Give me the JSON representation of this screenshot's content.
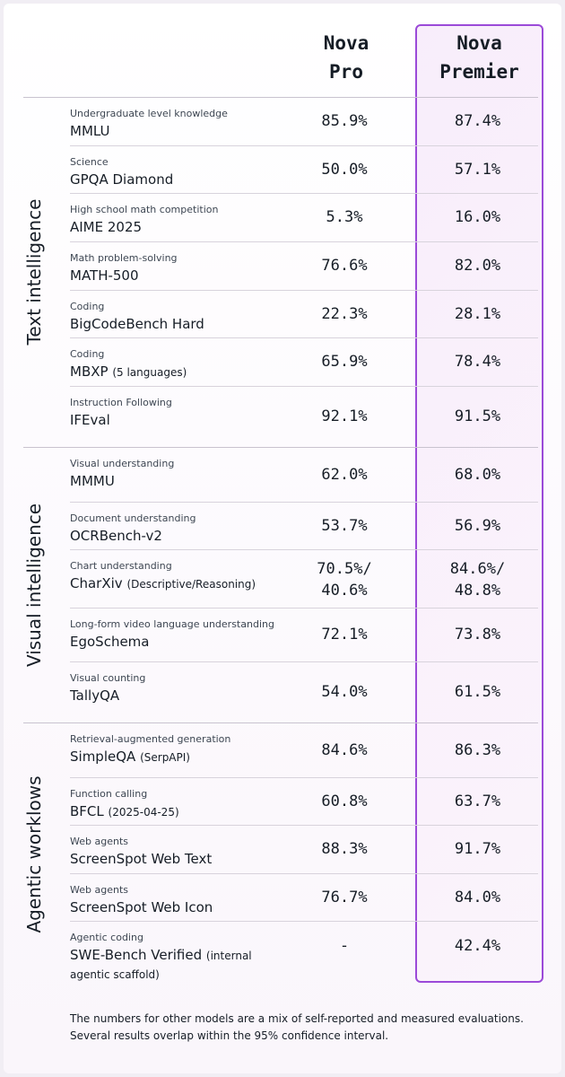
{
  "columns": {
    "pro": [
      "Nova",
      "Pro"
    ],
    "premier": [
      "Nova",
      "Premier"
    ]
  },
  "groups": [
    {
      "label": "Text intelligence",
      "rows": [
        {
          "category": "Undergraduate level knowledge",
          "benchmark": "MMLU",
          "note": "",
          "pro": [
            "85.9%"
          ],
          "premier": [
            "87.4%"
          ]
        },
        {
          "category": "Science",
          "benchmark": "GPQA Diamond",
          "note": "",
          "pro": [
            "50.0%"
          ],
          "premier": [
            "57.1%"
          ]
        },
        {
          "category": "High school math competition",
          "benchmark": "AIME 2025",
          "note": "",
          "pro": [
            "5.3%"
          ],
          "premier": [
            "16.0%"
          ]
        },
        {
          "category": "Math problem-solving",
          "benchmark": "MATH-500",
          "note": "",
          "pro": [
            "76.6%"
          ],
          "premier": [
            "82.0%"
          ]
        },
        {
          "category": "Coding",
          "benchmark": "BigCodeBench Hard",
          "note": "",
          "pro": [
            "22.3%"
          ],
          "premier": [
            "28.1%"
          ]
        },
        {
          "category": "Coding",
          "benchmark": "MBXP",
          "note": "(5 languages)",
          "pro": [
            "65.9%"
          ],
          "premier": [
            "78.4%"
          ]
        },
        {
          "category": "Instruction Following",
          "benchmark": "IFEval",
          "note": "",
          "pro": [
            "92.1%"
          ],
          "premier": [
            "91.5%"
          ]
        }
      ]
    },
    {
      "label": "Visual intelligence",
      "rows": [
        {
          "category": "Visual understanding",
          "benchmark": "MMMU",
          "note": "",
          "pro": [
            "62.0%"
          ],
          "premier": [
            "68.0%"
          ]
        },
        {
          "category": "Document understanding",
          "benchmark": "OCRBench-v2",
          "note": "",
          "pro": [
            "53.7%"
          ],
          "premier": [
            "56.9%"
          ]
        },
        {
          "category": "Chart understanding",
          "benchmark": "CharXiv",
          "note": "(Descriptive/Reasoning)",
          "pro": [
            "70.5%/",
            "40.6%"
          ],
          "premier": [
            "84.6%/",
            "48.8%"
          ]
        },
        {
          "category": "Long-form video language understanding",
          "benchmark": "EgoSchema",
          "note": "",
          "pro": [
            "72.1%"
          ],
          "premier": [
            "73.8%"
          ]
        },
        {
          "category": "Visual counting",
          "benchmark": "TallyQA",
          "note": "",
          "pro": [
            "54.0%"
          ],
          "premier": [
            "61.5%"
          ]
        }
      ]
    },
    {
      "label": "Agentic worklows",
      "rows": [
        {
          "category": "Retrieval-augmented generation",
          "benchmark": "SimpleQA",
          "note": "(SerpAPI)",
          "pro": [
            "84.6%"
          ],
          "premier": [
            "86.3%"
          ]
        },
        {
          "category": "Function calling",
          "benchmark": "BFCL",
          "note": "(2025-04-25)",
          "pro": [
            "60.8%"
          ],
          "premier": [
            "63.7%"
          ]
        },
        {
          "category": "Web agents",
          "benchmark": "ScreenSpot Web Text",
          "note": "",
          "pro": [
            "88.3%"
          ],
          "premier": [
            "91.7%"
          ]
        },
        {
          "category": "Web agents",
          "benchmark": "ScreenSpot Web Icon",
          "note": "",
          "pro": [
            "76.7%"
          ],
          "premier": [
            "84.0%"
          ]
        },
        {
          "category": "Agentic coding",
          "benchmark": "SWE-Bench Verified",
          "note": "(internal",
          "note2": "agentic scaffold)",
          "pro": [
            "-"
          ],
          "premier": [
            "42.4%"
          ]
        }
      ]
    }
  ],
  "footer": "The numbers for other models are a mix of self-reported and measured evaluations. Several results overlap within the 95% confidence interval.",
  "colors": {
    "accent": "#9b4ad8",
    "text": "#161d26",
    "highlight_bg": "#f7eafa"
  }
}
